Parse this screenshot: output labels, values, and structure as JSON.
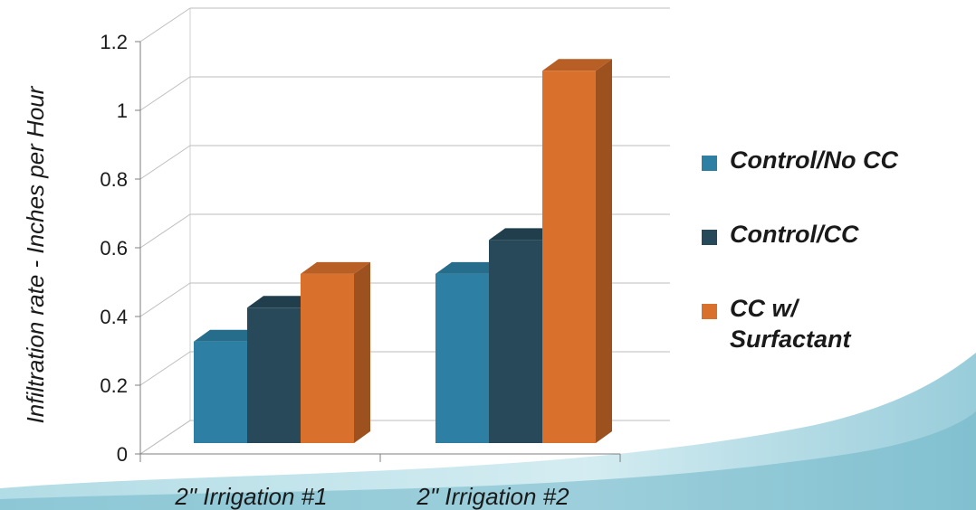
{
  "chart_data": {
    "type": "bar",
    "style": "3d-clustered-column",
    "categories": [
      "2\" Irrigation #1",
      "2\" Irrigation #2"
    ],
    "series": [
      {
        "name": "Control/No CC",
        "color": "#2d7fa3",
        "values": [
          0.3,
          0.5
        ]
      },
      {
        "name": "Control/CC",
        "color": "#27495a",
        "values": [
          0.4,
          0.6
        ]
      },
      {
        "name": "CC w/ Surfactant",
        "color": "#d9702b",
        "values": [
          0.5,
          1.1
        ]
      }
    ],
    "ylabel": "Infiltration rate - Inches per Hour",
    "ylim": [
      0,
      1.2
    ],
    "yticks": [
      "0",
      "0.2",
      "0.4",
      "0.6",
      "0.8",
      "1",
      "1.2"
    ],
    "grid": true,
    "legend": "right"
  },
  "legend_items": [
    {
      "label": "Control/No CC",
      "color": "#2d7fa3"
    },
    {
      "label": "Control/CC",
      "color": "#27495a"
    },
    {
      "label": "CC w/ Surfactant",
      "color": "#d9702b"
    }
  ]
}
